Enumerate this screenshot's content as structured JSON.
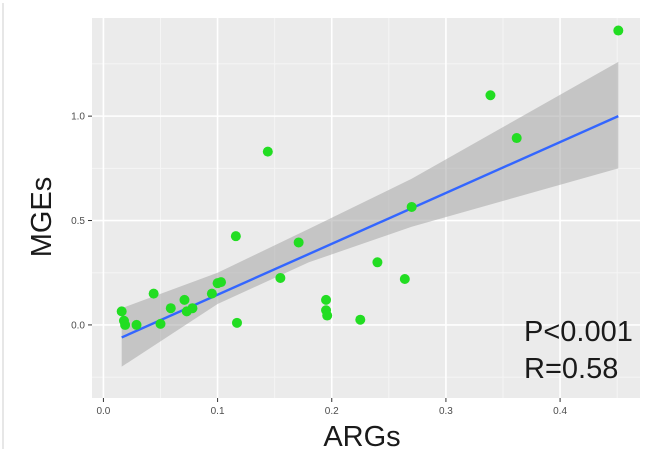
{
  "chart_data": {
    "type": "scatter",
    "xlabel": "ARGs",
    "ylabel": "MGEs",
    "xlim": [
      -0.01,
      0.47
    ],
    "ylim": [
      -0.35,
      1.47
    ],
    "x_ticks": [
      0.0,
      0.1,
      0.2,
      0.3,
      0.4
    ],
    "x_tick_labels": [
      "0.0",
      "0.1",
      "0.2",
      "0.3",
      "0.4"
    ],
    "y_ticks": [
      0.0,
      0.5,
      1.0
    ],
    "y_tick_labels": [
      "0.0",
      "0.5",
      "1.0"
    ],
    "grid": true,
    "points": [
      {
        "x": 0.016,
        "y": 0.065
      },
      {
        "x": 0.018,
        "y": 0.02
      },
      {
        "x": 0.019,
        "y": 0.0
      },
      {
        "x": 0.029,
        "y": 0.0
      },
      {
        "x": 0.044,
        "y": 0.15
      },
      {
        "x": 0.05,
        "y": 0.005
      },
      {
        "x": 0.059,
        "y": 0.08
      },
      {
        "x": 0.071,
        "y": 0.12
      },
      {
        "x": 0.073,
        "y": 0.065
      },
      {
        "x": 0.078,
        "y": 0.08
      },
      {
        "x": 0.095,
        "y": 0.15
      },
      {
        "x": 0.1,
        "y": 0.2
      },
      {
        "x": 0.103,
        "y": 0.205
      },
      {
        "x": 0.116,
        "y": 0.425
      },
      {
        "x": 0.117,
        "y": 0.01
      },
      {
        "x": 0.144,
        "y": 0.83
      },
      {
        "x": 0.155,
        "y": 0.225
      },
      {
        "x": 0.171,
        "y": 0.395
      },
      {
        "x": 0.195,
        "y": 0.12
      },
      {
        "x": 0.195,
        "y": 0.07
      },
      {
        "x": 0.196,
        "y": 0.045
      },
      {
        "x": 0.225,
        "y": 0.025
      },
      {
        "x": 0.24,
        "y": 0.3
      },
      {
        "x": 0.264,
        "y": 0.22
      },
      {
        "x": 0.27,
        "y": 0.565
      },
      {
        "x": 0.339,
        "y": 1.1
      },
      {
        "x": 0.362,
        "y": 0.895
      },
      {
        "x": 0.451,
        "y": 1.41
      }
    ],
    "fit": {
      "line": [
        {
          "x": 0.016,
          "y": -0.06
        },
        {
          "x": 0.451,
          "y": 1.0
        }
      ],
      "ci": [
        {
          "x": 0.016,
          "lower": -0.2,
          "upper": 0.08
        },
        {
          "x": 0.1,
          "lower": 0.1,
          "upper": 0.25
        },
        {
          "x": 0.18,
          "lower": 0.3,
          "upper": 0.46
        },
        {
          "x": 0.27,
          "lower": 0.47,
          "upper": 0.7
        },
        {
          "x": 0.451,
          "lower": 0.75,
          "upper": 1.26
        }
      ]
    },
    "annotations": [
      "P<0.001",
      "R=0.58"
    ]
  },
  "colors": {
    "panel": "#ebebeb",
    "grid_major": "#ffffff",
    "grid_minor": "#f5f5f5",
    "point": "#22dd22",
    "line": "#3366ff",
    "ribbon": "#a6a6a6",
    "text": "#1a1a1a",
    "tick_text": "#4d4d4d"
  }
}
